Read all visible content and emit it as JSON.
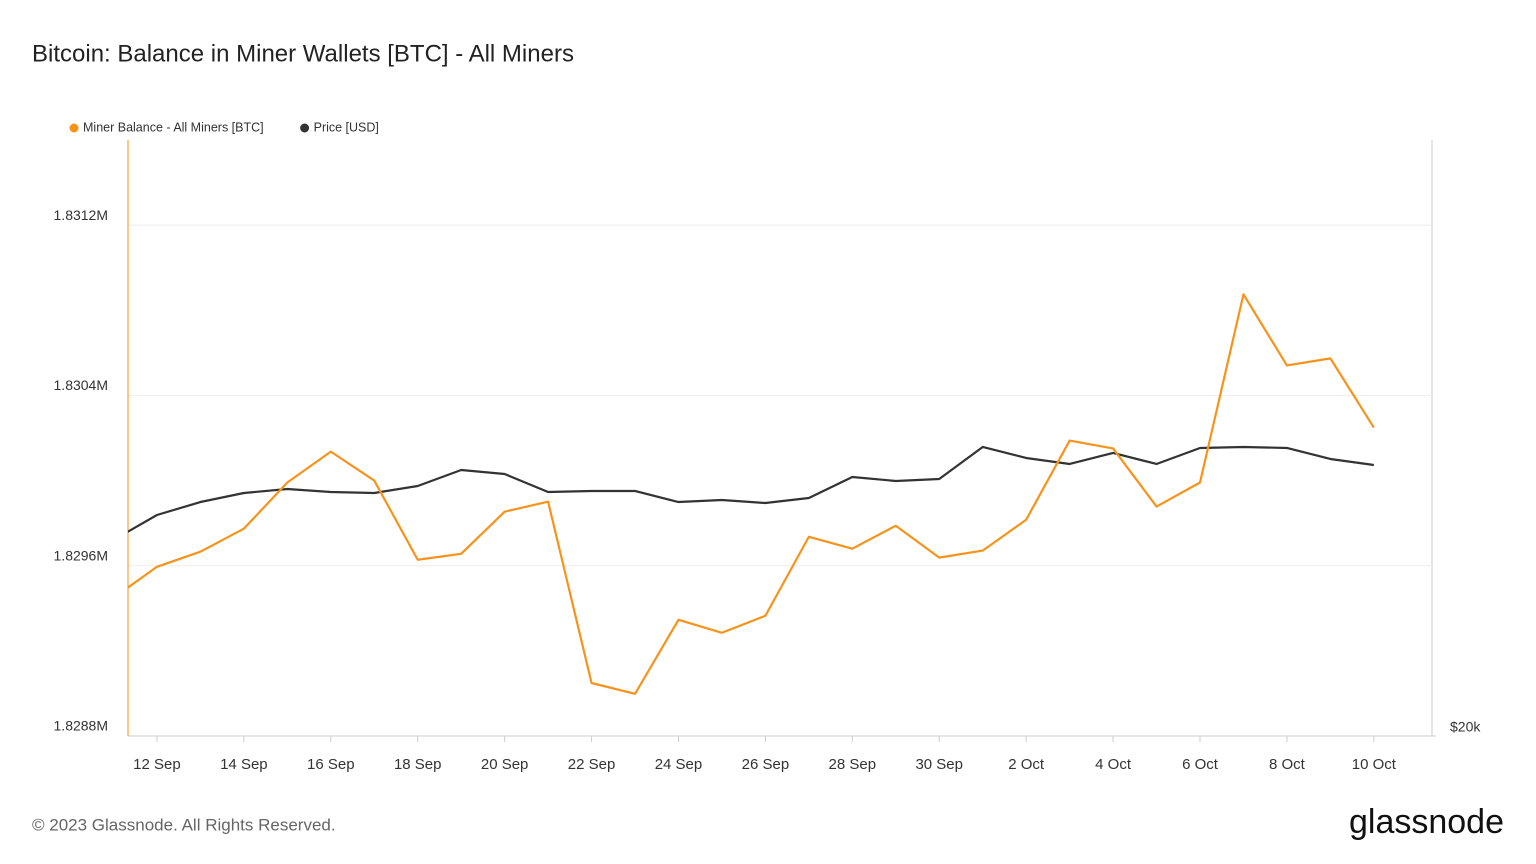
{
  "chart_data": {
    "type": "line",
    "title": "Bitcoin: Balance in Miner Wallets [BTC] - All Miners",
    "categories": [
      null,
      "12 Sep",
      null,
      "14 Sep",
      null,
      "16 Sep",
      null,
      "18 Sep",
      null,
      "20 Sep",
      null,
      "22 Sep",
      null,
      "24 Sep",
      null,
      "26 Sep",
      null,
      "28 Sep",
      null,
      "30 Sep",
      null,
      "2 Oct",
      null,
      "4 Oct",
      null,
      "6 Oct",
      null,
      "8 Oct",
      null,
      "10 Oct"
    ],
    "series": [
      {
        "name": "Miner Balance - All Miners [BTC]",
        "color": "#f7931a",
        "values": [
          1829449,
          1829595,
          1829666,
          1829774,
          1829991,
          1830136,
          1830000,
          1829628,
          1829656,
          1829854,
          1829901,
          1829049,
          1828998,
          1829346,
          1829285,
          1829365,
          1829736,
          1829680,
          1829788,
          1829638,
          1829671,
          1829816,
          1830188,
          1830151,
          1829878,
          1829991,
          1830875,
          1830541,
          1830574,
          1830249
        ]
      },
      {
        "name": "Price [USD]",
        "color": "#333333",
        "axis": "y2",
        "values": [
          24933,
          25562,
          25889,
          26116,
          26216,
          26141,
          26116,
          26292,
          26695,
          26594,
          26141,
          26166,
          26166,
          25889,
          25939,
          25864,
          25990,
          26519,
          26418,
          26468,
          27274,
          26997,
          26846,
          27123,
          26846,
          27249,
          27274,
          27249,
          26972,
          26821
        ]
      }
    ],
    "ylim": [
      1828800,
      1831600
    ],
    "yticks": [
      {
        "value": 1828800,
        "label": "1.8288M"
      },
      {
        "value": 1829600,
        "label": "1.8296M"
      },
      {
        "value": 1830400,
        "label": "1.8304M"
      },
      {
        "value": 1831200,
        "label": "1.8312M"
      }
    ],
    "y2lim": [
      20000,
      35000
    ],
    "y2ticks": [
      {
        "value": 20000,
        "label": "$20k"
      }
    ],
    "grid": true,
    "footer": "© 2023 Glassnode. All Rights Reserved.",
    "logo": "glassnode"
  }
}
